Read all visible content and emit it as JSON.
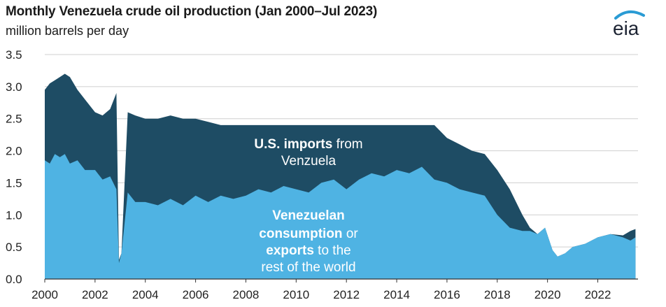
{
  "chart_data": {
    "type": "area",
    "title": "Monthly Venezuela crude oil production (Jan 2000–Jul 2023)",
    "ylabel": "million barrels per day",
    "xlabel": "",
    "xlim": [
      2000,
      2023.6
    ],
    "ylim": [
      0,
      3.5
    ],
    "x_ticks": [
      "2000",
      "2002",
      "2004",
      "2006",
      "2008",
      "2010",
      "2012",
      "2014",
      "2016",
      "2018",
      "2020",
      "2022"
    ],
    "x_tick_values": [
      2000,
      2002,
      2004,
      2006,
      2008,
      2010,
      2012,
      2014,
      2016,
      2018,
      2020,
      2022
    ],
    "y_ticks": [
      "3.5",
      "3.0",
      "2.5",
      "2.0",
      "1.5",
      "1.0",
      "0.5",
      "0.0"
    ],
    "y_tick_values": [
      3.5,
      3.0,
      2.5,
      2.0,
      1.5,
      1.0,
      0.5,
      0.0
    ],
    "series": [
      {
        "name": "Venezuelan consumption or exports to the rest of the world",
        "color": "#4fb3e3",
        "x": [
          2000.0,
          2000.2,
          2000.4,
          2000.6,
          2000.8,
          2001.0,
          2001.3,
          2001.6,
          2002.0,
          2002.3,
          2002.6,
          2002.85,
          2002.95,
          2003.05,
          2003.3,
          2003.6,
          2004.0,
          2004.5,
          2005.0,
          2005.5,
          2006.0,
          2006.5,
          2007.0,
          2007.5,
          2008.0,
          2008.5,
          2009.0,
          2009.5,
          2010.0,
          2010.5,
          2011.0,
          2011.5,
          2012.0,
          2012.5,
          2013.0,
          2013.5,
          2014.0,
          2014.5,
          2015.0,
          2015.5,
          2016.0,
          2016.5,
          2017.0,
          2017.5,
          2018.0,
          2018.5,
          2019.0,
          2019.3,
          2019.6,
          2019.9,
          2020.2,
          2020.4,
          2020.7,
          2021.0,
          2021.5,
          2022.0,
          2022.5,
          2023.0,
          2023.3,
          2023.5
        ],
        "values": [
          1.85,
          1.8,
          1.95,
          1.9,
          1.95,
          1.8,
          1.85,
          1.7,
          1.7,
          1.55,
          1.6,
          1.4,
          0.25,
          0.4,
          1.35,
          1.2,
          1.2,
          1.15,
          1.25,
          1.15,
          1.3,
          1.2,
          1.3,
          1.25,
          1.3,
          1.4,
          1.35,
          1.45,
          1.4,
          1.35,
          1.5,
          1.55,
          1.4,
          1.55,
          1.65,
          1.6,
          1.7,
          1.65,
          1.75,
          1.55,
          1.5,
          1.4,
          1.35,
          1.3,
          1.0,
          0.8,
          0.75,
          0.75,
          0.7,
          0.8,
          0.45,
          0.35,
          0.4,
          0.5,
          0.55,
          0.65,
          0.7,
          0.65,
          0.6,
          0.65
        ]
      },
      {
        "name": "U.S. imports from Venzuela",
        "color": "#1e4c64",
        "x": [
          2000.0,
          2000.2,
          2000.4,
          2000.6,
          2000.8,
          2001.0,
          2001.3,
          2001.6,
          2002.0,
          2002.3,
          2002.6,
          2002.85,
          2002.95,
          2003.05,
          2003.3,
          2003.6,
          2004.0,
          2004.5,
          2005.0,
          2005.5,
          2006.0,
          2006.5,
          2007.0,
          2007.5,
          2008.0,
          2008.5,
          2009.0,
          2009.5,
          2010.0,
          2010.5,
          2011.0,
          2011.5,
          2012.0,
          2012.5,
          2013.0,
          2013.5,
          2014.0,
          2014.5,
          2015.0,
          2015.5,
          2016.0,
          2016.5,
          2017.0,
          2017.5,
          2018.0,
          2018.5,
          2019.0,
          2019.3,
          2019.6,
          2019.9,
          2020.2,
          2020.4,
          2020.7,
          2021.0,
          2021.5,
          2022.0,
          2022.5,
          2023.0,
          2023.3,
          2023.5
        ],
        "total": [
          2.95,
          3.05,
          3.1,
          3.15,
          3.2,
          3.15,
          2.95,
          2.8,
          2.6,
          2.55,
          2.65,
          2.9,
          0.3,
          0.4,
          2.6,
          2.55,
          2.5,
          2.5,
          2.55,
          2.5,
          2.5,
          2.45,
          2.4,
          2.4,
          2.4,
          2.4,
          2.4,
          2.4,
          2.4,
          2.4,
          2.4,
          2.4,
          2.4,
          2.4,
          2.4,
          2.4,
          2.4,
          2.4,
          2.4,
          2.4,
          2.2,
          2.1,
          2.0,
          1.95,
          1.7,
          1.4,
          1.0,
          0.8,
          0.7,
          0.8,
          0.45,
          0.35,
          0.4,
          0.5,
          0.55,
          0.65,
          0.7,
          0.68,
          0.75,
          0.78
        ]
      }
    ],
    "annotations": {
      "imports_label": {
        "bold": "U.S. imports",
        "normal": " from",
        "line2": "Venzuela"
      },
      "consumption_label": {
        "line1_bold": "Venezuelan",
        "line2_bold": "consumption",
        "line2_normal": " or",
        "line3_bold": "exports",
        "line3_normal": " to the",
        "line4": "rest of the world"
      }
    },
    "colors": {
      "light": "#4fb3e3",
      "dark": "#1e4c64",
      "grid": "#cfcfcf",
      "axis": "#555555"
    }
  },
  "logo": {
    "text": "eia"
  }
}
